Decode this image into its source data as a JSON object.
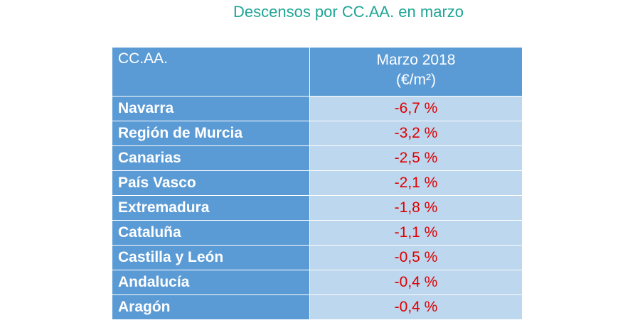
{
  "title": "Descensos por CC.AA. en marzo",
  "table": {
    "columns": [
      {
        "label": "CC.AA."
      },
      {
        "label": "Marzo 2018",
        "unit": "(€/m²)"
      }
    ],
    "rows": [
      [
        "Navarra",
        "-6,7 %"
      ],
      [
        "Región de Murcia",
        "-3,2 %"
      ],
      [
        "Canarias",
        "-2,5 %"
      ],
      [
        "País Vasco",
        "-2,1 %"
      ],
      [
        "Extremadura",
        "-1,8 %"
      ],
      [
        "Cataluña",
        "-1,1 %"
      ],
      [
        "Castilla y León",
        "-0,5 %"
      ],
      [
        "Andalucía",
        "-0,4 %"
      ],
      [
        "Aragón",
        "-0,4 %"
      ]
    ]
  }
}
